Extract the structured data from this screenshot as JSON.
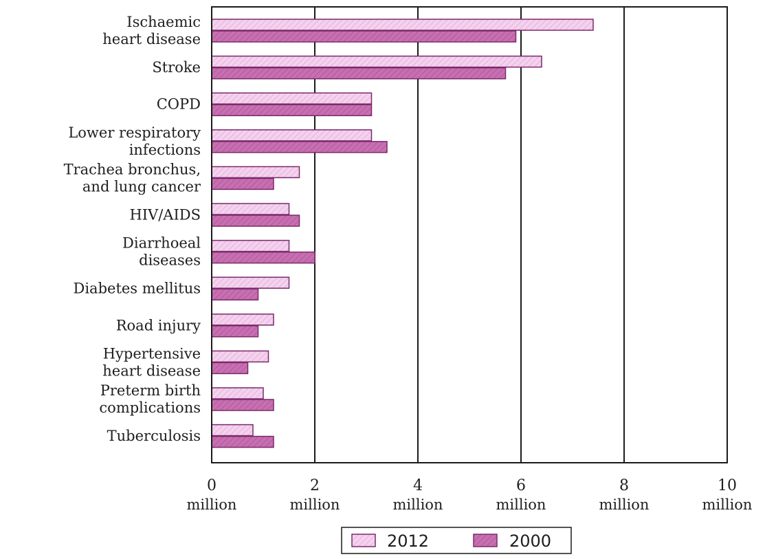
{
  "chart_data": {
    "type": "bar",
    "orientation": "horizontal",
    "categories": [
      [
        "Ischaemic",
        "heart disease"
      ],
      [
        "Stroke"
      ],
      [
        "COPD"
      ],
      [
        "Lower respiratory",
        "infections"
      ],
      [
        "Trachea bronchus,",
        "and lung cancer"
      ],
      [
        "HIV/AIDS"
      ],
      [
        "Diarrhoeal",
        "diseases"
      ],
      [
        "Diabetes mellitus"
      ],
      [
        "Road injury"
      ],
      [
        "Hypertensive",
        "heart disease"
      ],
      [
        "Preterm birth",
        "complications"
      ],
      [
        "Tuberculosis"
      ]
    ],
    "series": [
      {
        "name": "2012",
        "values": [
          7.4,
          6.4,
          3.1,
          3.1,
          1.7,
          1.5,
          1.5,
          1.5,
          1.2,
          1.1,
          1.0,
          0.8
        ]
      },
      {
        "name": "2000",
        "values": [
          5.9,
          5.7,
          3.1,
          3.4,
          1.2,
          1.7,
          2.0,
          0.9,
          0.9,
          0.7,
          1.2,
          1.2
        ]
      }
    ],
    "ticks": [
      {
        "number": "0",
        "unit": "million"
      },
      {
        "number": "2",
        "unit": "million"
      },
      {
        "number": "4",
        "unit": "million"
      },
      {
        "number": "6",
        "unit": "million"
      },
      {
        "number": "8",
        "unit": "million"
      },
      {
        "number": "10",
        "unit": "million"
      }
    ],
    "xlim": [
      0,
      10
    ],
    "grid": "vertical lines at every tick",
    "legend_position": "bottom-center",
    "colors": {
      "2012": "#f4d2ee",
      "2000": "#c76fb0",
      "outline": "#7a2a6a"
    }
  }
}
